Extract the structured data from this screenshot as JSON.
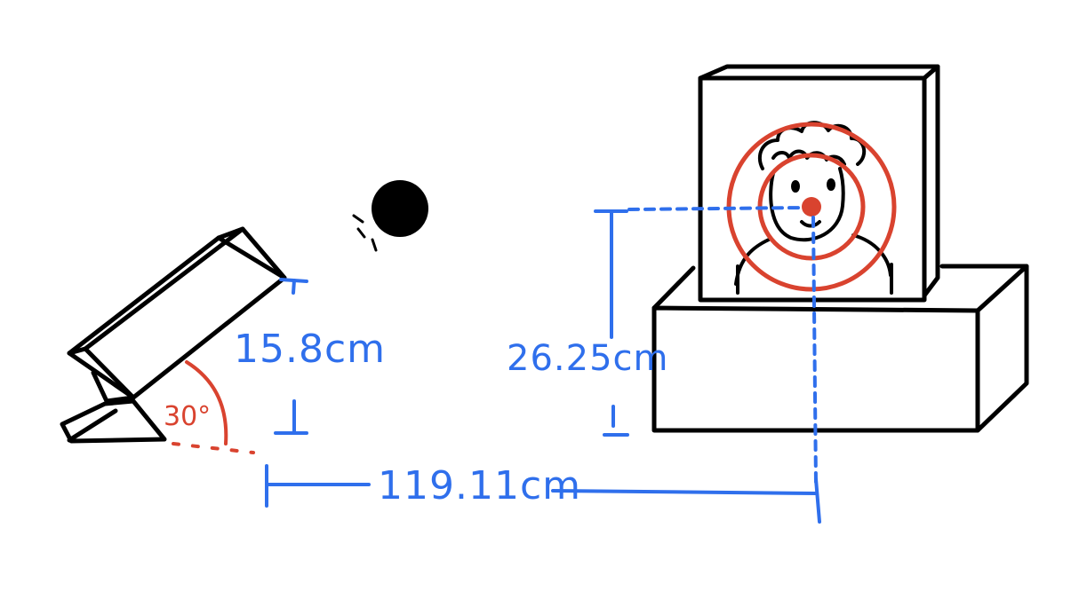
{
  "labels": {
    "launcher_height": "15.8cm",
    "launch_angle": "30°",
    "target_height": "26.25cm",
    "horizontal_distance": "119.11cm"
  },
  "colors": {
    "ink": "#000000",
    "dimension": "#2f6fec",
    "target": "#d9432f"
  }
}
